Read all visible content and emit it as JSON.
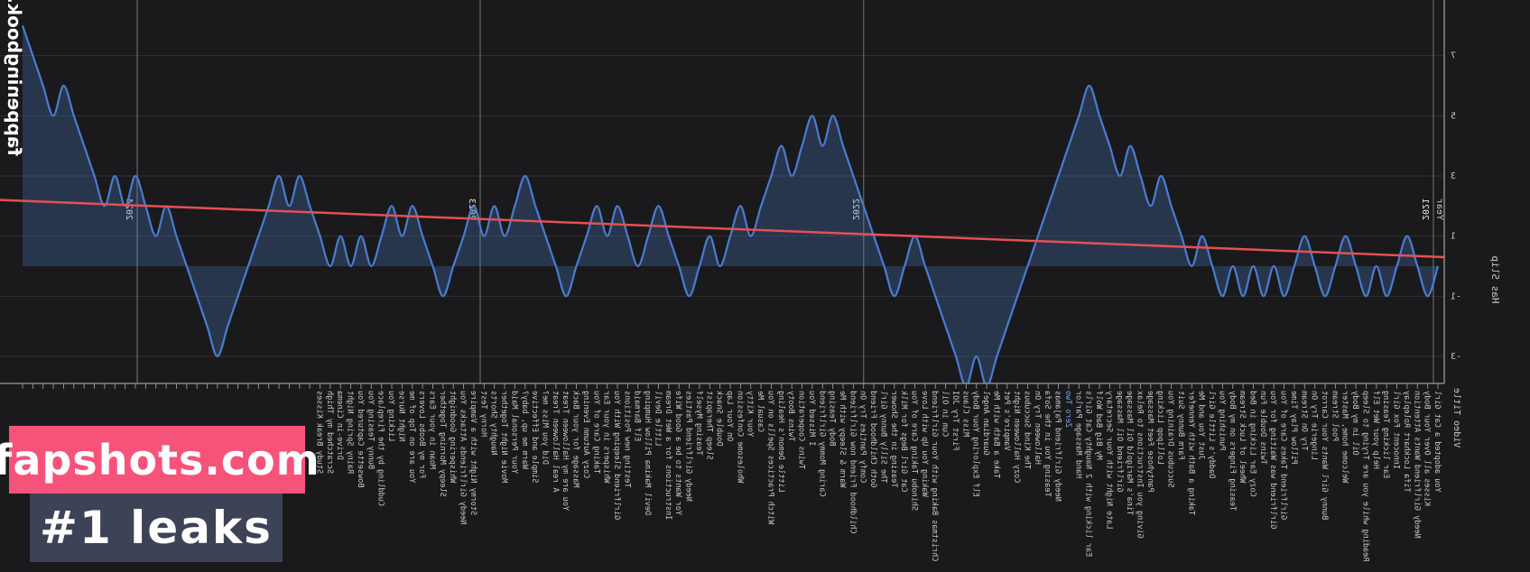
{
  "watermarks": {
    "site_vertical": "fappeningbook.com",
    "banner_primary": "fapshots.com",
    "banner_primary_color": "#f6537b",
    "banner_secondary": "#1 leaks",
    "banner_secondary_color": "#3d4356"
  },
  "chart_data": {
    "type": "area",
    "title": "",
    "xlabel": "Video Title",
    "ylabel": "Has Slip",
    "x_axis_group_label": "Year",
    "mirrored": true,
    "legend": "none",
    "grid": "on",
    "x_group_ticks": [
      {
        "label": "2021",
        "f": 0.0075
      },
      {
        "label": "2022",
        "f": 0.402
      },
      {
        "label": "2023",
        "f": 0.6675
      },
      {
        "label": "2024",
        "f": 0.905
      }
    ],
    "y_ticks": [
      9,
      7,
      5,
      3,
      1,
      -1,
      -3
    ],
    "ylim": [
      -3.9,
      8.85
    ],
    "baseline": 0,
    "highlight_category": {
      "label": "Zero Two",
      "color": "#7aa5ef"
    },
    "trend": {
      "start_value": 0.3,
      "end_value": 2.2,
      "color": "#e65053"
    },
    "colors": {
      "line": "#4a7cd0",
      "fill": "rgba(80,130,205,0.28)",
      "background": "#1a1a1c",
      "grid": "rgba(255,255,255,0.10)",
      "year_grid": "rgba(230,230,230,0.45)",
      "axis": "#9a9a9a",
      "tick_text": "#c8c8c8"
    },
    "categories": [
      "You adopted a Cat Girl",
      "Kisses all Over Your Body",
      "Needy Girlfriend Wants Attention",
      "Tifa Lockhart Roleplay",
      "Innocent Fox Girl",
      "Ear licking Teasing",
      "Help your Wet Elf",
      "Reading while you are Trying to Sleep",
      "Oil in my Body",
      "Welcome home, Master",
      "Pool Stream",
      "Bunny Girl Wants Your Carrot",
      "Lingerie Try On",
      "Try On Stream",
      "Pillow Play Time",
      "Girlfriend Takes Care of You",
      "Girlfriend was Waiting for You",
      "Twins Double Fun",
      "Cozy Ear Licking in Bed",
      "Wheel of Luck Stream",
      "Teasing Fingers on my Body",
      "Punishing You",
      "Daddy's Little Girl",
      "Just You and Me",
      "Taking a Bath with Yennefer",
      "Farm Bunny Suit",
      "Succubus Draining You",
      "Lollipop Licking",
      "Pantyhose Feet Massage",
      "Giving you Instructions to Relax",
      "Tina's Marigold Oil Massage",
      "Girlfriend Oil Massage",
      "Late Night with Your Secretary",
      "My Big Bad Wolf",
      "Ear licking with 2 Naughty Cat Girls",
      "Hand Massage Parlor",
      "Zero Two",
      "Needy Girlfriend Pajamas",
      "Teasing You in the Sofa",
      "Halloween Try On",
      "The Kind Succubus",
      "Cozy Halloween Night",
      "Vampire's Pet",
      "Take a Bath with Me",
      "Guardian Angel",
      "Elf Exploring Your Body",
      "Miss Claus",
      "First Try JOI",
      "Cum in Oil",
      "Christmas Baking with Your Girlfriend",
      "Waking You Up with Love",
      "Shinobu Taking Care of You",
      "Cat Girl Begs for Milk",
      "Teasing in the Shower",
      "The Silly Bunny Girl",
      "Goth Childhood Friend",
      "Comfy Panties Try On",
      "Childhood Friend now Girlfriend",
      "Warm & Sleepy with Me",
      "Body Teasing",
      "Caring Mommy Girlfriend",
      "I Missed You",
      "Twins Cooperation",
      "Twins Booty",
      "Little Demon's Healing",
      "Witch Practices Spells on You",
      "Casual Me",
      "Your Kitty",
      "Wholesome Confession",
      "On Your Lap",
      "Double Snack",
      "Sleep Therapist",
      "Teasing Myself",
      "Needy Girlfriend Pasties",
      "Yor Wants to be a Good Wife",
      "Instructions for a Wet Dream",
      "Little Devil",
      "Devil Makima Pillow Humping",
      "Elf Barmaid",
      "Testing new Positions",
      "Girlfriend Sleeping With You",
      "Whispers in your Ear",
      "Taking Care of You",
      "Cozy Autumn Evening",
      "Massage for your Back",
      "You are my Halloween Treat",
      "A real Halloween Treat",
      "Did you Miss me?",
      "Simple and Effective",
      "Warm me up, baby?",
      "Your Personal Maid",
      "Movie Night Together",
      "Naughty Shorts",
      "Horny Test",
      "Stormy Night with a Vampire",
      "Needy Girlfriends Attacks You",
      "Whispering Goodnight",
      "Sleepy Morning Together",
      "Moan in your Ears",
      "For my Boobs Lovers",
      "You are on Top of me",
      "Night Nurse",
      "Licking You",
      "Cuddling by the Fireplace",
      "Bunny Teasing You",
      "Bowsette Captured You",
      "Rainy Spring Night",
      "Drive-in Cinema",
      "Scratched my Thigh",
      "Study Break Kisses",
      "",
      "",
      "",
      "",
      "",
      "",
      "",
      "",
      "",
      "",
      "",
      "",
      "",
      "",
      "",
      "",
      "",
      "",
      "",
      "",
      "",
      "",
      "",
      "",
      "",
      "",
      "",
      "",
      ""
    ],
    "values": [
      0,
      -1,
      0,
      1,
      0,
      -1,
      0,
      -1,
      0,
      1,
      0,
      -1,
      0,
      1,
      0,
      -1,
      0,
      -1,
      0,
      -1,
      0,
      -1,
      0,
      1,
      0,
      1,
      2,
      3,
      2,
      3,
      4,
      3,
      4,
      5,
      6,
      5,
      4,
      3,
      2,
      1,
      0,
      -1,
      -2,
      -3,
      -4,
      -3,
      -4,
      -3,
      -2,
      -1,
      0,
      1,
      0,
      -1,
      0,
      1,
      2,
      3,
      4,
      5,
      4,
      5,
      4,
      3,
      4,
      3,
      2,
      1,
      2,
      1,
      0,
      1,
      0,
      -1,
      0,
      1,
      2,
      1,
      0,
      1,
      2,
      1,
      2,
      1,
      0,
      -1,
      0,
      1,
      2,
      3,
      2,
      1,
      2,
      1,
      2,
      1,
      0,
      -1,
      0,
      1,
      2,
      1,
      2,
      1,
      0,
      1,
      0,
      1,
      0,
      1,
      2,
      3,
      2,
      3,
      2,
      1,
      0,
      -1,
      -2,
      -3,
      -2,
      -1,
      0,
      1,
      2,
      1,
      2,
      3,
      2,
      3,
      2,
      3,
      4,
      5,
      6,
      5,
      6,
      7,
      8
    ]
  }
}
